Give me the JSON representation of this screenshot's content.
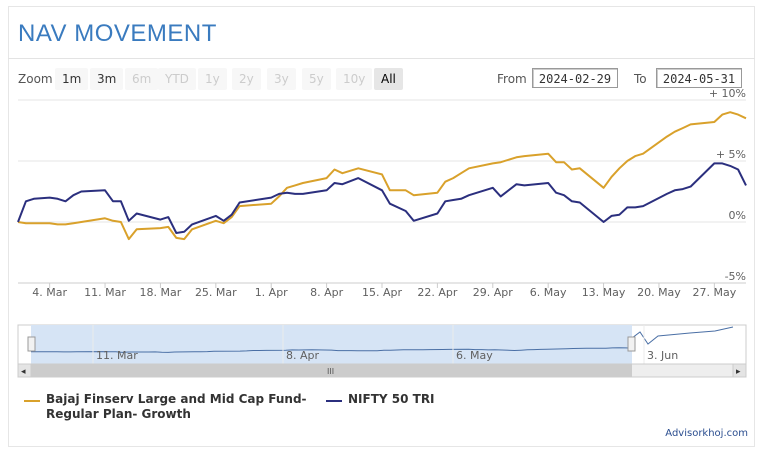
{
  "title": "NAV MOVEMENT",
  "zoom": {
    "label": "Zoom",
    "buttons": [
      {
        "label": "1m",
        "state": "enabled"
      },
      {
        "label": "3m",
        "state": "enabled"
      },
      {
        "label": "6m",
        "state": "disabled"
      },
      {
        "label": "YTD",
        "state": "disabled"
      },
      {
        "label": "1y",
        "state": "disabled"
      },
      {
        "label": "2y",
        "state": "disabled"
      },
      {
        "label": "3y",
        "state": "disabled"
      },
      {
        "label": "5y",
        "state": "disabled"
      },
      {
        "label": "10y",
        "state": "disabled"
      },
      {
        "label": "All",
        "state": "active"
      }
    ]
  },
  "range": {
    "from_label": "From",
    "from_value": "2024-02-29",
    "to_label": "To",
    "to_value": "2024-05-31"
  },
  "credit": "Advisorkhoj.com",
  "colors": {
    "fund": "#d9a12b",
    "index": "#2b2f7e",
    "title": "#3a7bbf",
    "navigator_fill": "#d6e4f5"
  },
  "chart_data": {
    "type": "line",
    "title": "NAV MOVEMENT",
    "xlabel": "",
    "ylabel": "",
    "y_unit": "%",
    "ylim": [
      -5,
      10
    ],
    "y_ticks": [
      {
        "value": 10,
        "label": "+ 10%"
      },
      {
        "value": 5,
        "label": "+ 5%"
      },
      {
        "value": 0,
        "label": "0%"
      },
      {
        "value": -5,
        "label": "-5%"
      }
    ],
    "x_range": [
      "2024-02-29",
      "2024-05-31"
    ],
    "x_ticks": [
      {
        "date": "2024-03-04",
        "label": "4. Mar"
      },
      {
        "date": "2024-03-11",
        "label": "11. Mar"
      },
      {
        "date": "2024-03-18",
        "label": "18. Mar"
      },
      {
        "date": "2024-03-25",
        "label": "25. Mar"
      },
      {
        "date": "2024-04-01",
        "label": "1. Apr"
      },
      {
        "date": "2024-04-08",
        "label": "8. Apr"
      },
      {
        "date": "2024-04-15",
        "label": "15. Apr"
      },
      {
        "date": "2024-04-22",
        "label": "22. Apr"
      },
      {
        "date": "2024-04-29",
        "label": "29. Apr"
      },
      {
        "date": "2024-05-06",
        "label": "6. May"
      },
      {
        "date": "2024-05-13",
        "label": "13. May"
      },
      {
        "date": "2024-05-20",
        "label": "20. May"
      },
      {
        "date": "2024-05-27",
        "label": "27. May"
      }
    ],
    "grid": true,
    "legend_position": "bottom-left",
    "series": [
      {
        "name": "Bajaj Finserv Large and Mid Cap Fund- Regular Plan- Growth",
        "points": [
          [
            "2024-02-29",
            0.0
          ],
          [
            "2024-03-01",
            -0.1
          ],
          [
            "2024-03-04",
            -0.1
          ],
          [
            "2024-03-05",
            -0.2
          ],
          [
            "2024-03-06",
            -0.2
          ],
          [
            "2024-03-07",
            -0.1
          ],
          [
            "2024-03-11",
            0.3
          ],
          [
            "2024-03-12",
            0.1
          ],
          [
            "2024-03-13",
            0.0
          ],
          [
            "2024-03-14",
            -1.4
          ],
          [
            "2024-03-15",
            -0.6
          ],
          [
            "2024-03-18",
            -0.5
          ],
          [
            "2024-03-19",
            -0.4
          ],
          [
            "2024-03-20",
            -1.3
          ],
          [
            "2024-03-21",
            -1.4
          ],
          [
            "2024-03-22",
            -0.6
          ],
          [
            "2024-03-25",
            0.1
          ],
          [
            "2024-03-26",
            -0.1
          ],
          [
            "2024-03-27",
            0.4
          ],
          [
            "2024-03-28",
            1.3
          ],
          [
            "2024-04-01",
            1.5
          ],
          [
            "2024-04-02",
            2.1
          ],
          [
            "2024-04-03",
            2.8
          ],
          [
            "2024-04-04",
            3.0
          ],
          [
            "2024-04-05",
            3.2
          ],
          [
            "2024-04-08",
            3.6
          ],
          [
            "2024-04-09",
            4.3
          ],
          [
            "2024-04-10",
            4.0
          ],
          [
            "2024-04-12",
            4.4
          ],
          [
            "2024-04-15",
            3.9
          ],
          [
            "2024-04-16",
            2.6
          ],
          [
            "2024-04-18",
            2.6
          ],
          [
            "2024-04-19",
            2.2
          ],
          [
            "2024-04-22",
            2.4
          ],
          [
            "2024-04-23",
            3.3
          ],
          [
            "2024-04-24",
            3.6
          ],
          [
            "2024-04-25",
            4.0
          ],
          [
            "2024-04-26",
            4.4
          ],
          [
            "2024-04-29",
            4.8
          ],
          [
            "2024-04-30",
            4.9
          ],
          [
            "2024-05-02",
            5.3
          ],
          [
            "2024-05-03",
            5.4
          ],
          [
            "2024-05-06",
            5.6
          ],
          [
            "2024-05-07",
            4.9
          ],
          [
            "2024-05-08",
            4.9
          ],
          [
            "2024-05-09",
            4.3
          ],
          [
            "2024-05-10",
            4.4
          ],
          [
            "2024-05-13",
            2.8
          ],
          [
            "2024-05-14",
            3.7
          ],
          [
            "2024-05-15",
            4.4
          ],
          [
            "2024-05-16",
            5.0
          ],
          [
            "2024-05-17",
            5.4
          ],
          [
            "2024-05-18",
            5.6
          ],
          [
            "2024-05-21",
            7.0
          ],
          [
            "2024-05-22",
            7.4
          ],
          [
            "2024-05-23",
            7.7
          ],
          [
            "2024-05-24",
            8.0
          ],
          [
            "2024-05-27",
            8.2
          ],
          [
            "2024-05-28",
            8.8
          ],
          [
            "2024-05-29",
            9.0
          ],
          [
            "2024-05-30",
            8.8
          ],
          [
            "2024-05-31",
            8.5
          ]
        ]
      },
      {
        "name": "NIFTY 50 TRI",
        "points": [
          [
            "2024-02-29",
            0.0
          ],
          [
            "2024-03-01",
            1.7
          ],
          [
            "2024-03-02",
            1.9
          ],
          [
            "2024-03-04",
            2.0
          ],
          [
            "2024-03-05",
            1.9
          ],
          [
            "2024-03-06",
            1.7
          ],
          [
            "2024-03-07",
            2.2
          ],
          [
            "2024-03-08",
            2.5
          ],
          [
            "2024-03-11",
            2.6
          ],
          [
            "2024-03-12",
            1.7
          ],
          [
            "2024-03-13",
            1.7
          ],
          [
            "2024-03-14",
            0.1
          ],
          [
            "2024-03-15",
            0.7
          ],
          [
            "2024-03-18",
            0.2
          ],
          [
            "2024-03-19",
            0.4
          ],
          [
            "2024-03-20",
            -0.9
          ],
          [
            "2024-03-21",
            -0.8
          ],
          [
            "2024-03-22",
            -0.2
          ],
          [
            "2024-03-25",
            0.5
          ],
          [
            "2024-03-26",
            0.1
          ],
          [
            "2024-03-27",
            0.6
          ],
          [
            "2024-03-28",
            1.6
          ],
          [
            "2024-04-01",
            2.0
          ],
          [
            "2024-04-02",
            2.3
          ],
          [
            "2024-04-03",
            2.4
          ],
          [
            "2024-04-04",
            2.3
          ],
          [
            "2024-04-05",
            2.3
          ],
          [
            "2024-04-08",
            2.6
          ],
          [
            "2024-04-09",
            3.2
          ],
          [
            "2024-04-10",
            3.1
          ],
          [
            "2024-04-12",
            3.6
          ],
          [
            "2024-04-15",
            2.6
          ],
          [
            "2024-04-16",
            1.5
          ],
          [
            "2024-04-18",
            0.9
          ],
          [
            "2024-04-19",
            0.1
          ],
          [
            "2024-04-22",
            0.7
          ],
          [
            "2024-04-23",
            1.7
          ],
          [
            "2024-04-24",
            1.8
          ],
          [
            "2024-04-25",
            1.9
          ],
          [
            "2024-04-26",
            2.2
          ],
          [
            "2024-04-29",
            2.8
          ],
          [
            "2024-04-30",
            2.1
          ],
          [
            "2024-05-02",
            3.1
          ],
          [
            "2024-05-03",
            3.0
          ],
          [
            "2024-05-06",
            3.2
          ],
          [
            "2024-05-07",
            2.4
          ],
          [
            "2024-05-08",
            2.2
          ],
          [
            "2024-05-09",
            1.7
          ],
          [
            "2024-05-10",
            1.6
          ],
          [
            "2024-05-13",
            0.0
          ],
          [
            "2024-05-14",
            0.5
          ],
          [
            "2024-05-15",
            0.6
          ],
          [
            "2024-05-16",
            1.2
          ],
          [
            "2024-05-17",
            1.2
          ],
          [
            "2024-05-18",
            1.3
          ],
          [
            "2024-05-21",
            2.3
          ],
          [
            "2024-05-22",
            2.6
          ],
          [
            "2024-05-23",
            2.7
          ],
          [
            "2024-05-24",
            2.9
          ],
          [
            "2024-05-27",
            4.8
          ],
          [
            "2024-05-28",
            4.8
          ],
          [
            "2024-05-29",
            4.6
          ],
          [
            "2024-05-30",
            4.3
          ],
          [
            "2024-05-31",
            3.0
          ]
        ]
      }
    ]
  },
  "navigator": {
    "labels": [
      "11. Mar",
      "8. Apr",
      "6. May",
      "3. Jun"
    ],
    "scrollbar_grip": "III",
    "left_arrow": "◂",
    "right_arrow": "▸",
    "handle_glyph": "|||"
  }
}
